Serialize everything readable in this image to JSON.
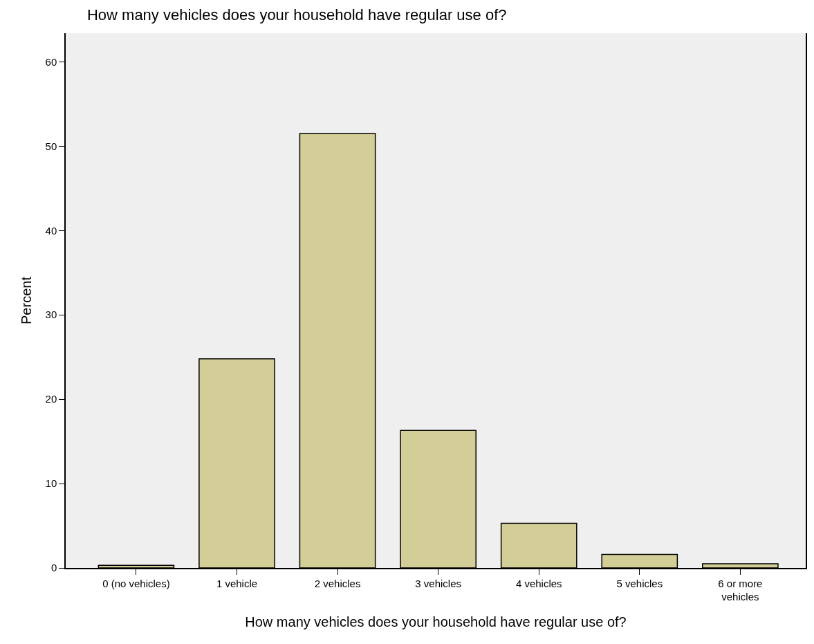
{
  "chart_data": {
    "type": "bar",
    "title": "How many vehicles does your household have regular use of?",
    "xlabel": "How many vehicles does your household have regular use of?",
    "ylabel": "Percent",
    "categories": [
      "0 (no vehicles)",
      "1 vehicle",
      "2 vehicles",
      "3 vehicles",
      "4 vehicles",
      "5 vehicles",
      "6 or more\nvehicles"
    ],
    "values": [
      0.3,
      24.8,
      51.5,
      16.3,
      5.3,
      1.6,
      0.5
    ],
    "color": "#d3ce97",
    "ylim": [
      0,
      63.4
    ],
    "yticks": [
      0,
      10,
      20,
      30,
      40,
      50,
      60
    ],
    "grid": false,
    "legend": false
  }
}
